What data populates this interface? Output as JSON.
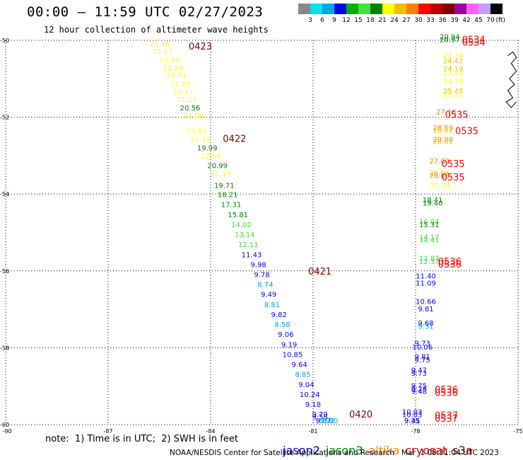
{
  "header": {
    "title": "00:00 – 11:59 UTC 02/27/2023",
    "subtitle": "12 hour collection of altimeter wave heights"
  },
  "colorbar": {
    "unit": "(ft)",
    "ticks": [
      "3",
      "6",
      "9",
      "12",
      "15",
      "18",
      "21",
      "24",
      "27",
      "30",
      "33",
      "36",
      "39",
      "42",
      "45",
      "70"
    ],
    "colors": [
      "#888888",
      "#00e0f0",
      "#00a8e0",
      "#0000ff",
      "#00b000",
      "#40e040",
      "#008000",
      "#ffff00",
      "#f0c000",
      "#ff8000",
      "#ff0000",
      "#c00000",
      "#800000",
      "#a000a0",
      "#ff60ff",
      "#c0a0ff",
      "#000000"
    ]
  },
  "note": "note:  1) Time is in UTC;  2) SWH is in feet",
  "legend": [
    {
      "label": "jason2",
      "color": "#0000cc"
    },
    {
      "label": "jason3",
      "color": "#008800"
    },
    {
      "label": "altika",
      "color": "#ff8800"
    },
    {
      "label": "cryosat",
      "color": "#dd0000"
    },
    {
      "label": "s3a",
      "color": "#880000"
    }
  ],
  "footer": {
    "credit": "NOAA/NESDIS Center for Satellite Applications and Research",
    "timestamp": "Mar  1 08:31:04 UTC 2023"
  },
  "chart_data": {
    "type": "scatter",
    "xlim": [
      -90,
      -75
    ],
    "ylim": [
      -60,
      -50
    ],
    "x_ticks": [
      -90,
      -87,
      -84,
      -81,
      -78,
      -75
    ],
    "x_tick_labels": [
      "-90",
      "-87",
      "-84",
      "-81",
      "-78",
      "-75"
    ],
    "y_ticks": [
      -50,
      -52,
      -54,
      -56,
      -58,
      -60
    ],
    "y_tick_labels": [
      "-50",
      "-52",
      "-54",
      "-56",
      "-58",
      "-60"
    ],
    "grid": true,
    "track_labels": [
      {
        "text": "0423",
        "lon": -84.3,
        "lat": -50.15,
        "color": "#800000"
      },
      {
        "text": "0422",
        "lon": -83.3,
        "lat": -52.55,
        "color": "#800000"
      },
      {
        "text": "0421",
        "lon": -80.8,
        "lat": -56.0,
        "color": "#800000"
      },
      {
        "text": "0420",
        "lon": -79.6,
        "lat": -59.72,
        "color": "#800000"
      },
      {
        "text": "0534",
        "lon": -76.3,
        "lat": -49.97,
        "color": "#ff0000"
      },
      {
        "text": "0534",
        "lon": -76.3,
        "lat": -50.05,
        "color": "#ff0000"
      },
      {
        "text": "0535",
        "lon": -76.8,
        "lat": -51.92,
        "color": "#ff0000"
      },
      {
        "text": "0535",
        "lon": -76.5,
        "lat": -52.35,
        "color": "#ff0000"
      },
      {
        "text": "0535",
        "lon": -76.9,
        "lat": -53.2,
        "color": "#ff0000"
      },
      {
        "text": "0535",
        "lon": -76.9,
        "lat": -53.55,
        "color": "#ff0000"
      },
      {
        "text": "0536",
        "lon": -77.0,
        "lat": -55.75,
        "color": "#ff0000"
      },
      {
        "text": "0536",
        "lon": -77.0,
        "lat": -55.82,
        "color": "#ff0000"
      },
      {
        "text": "0536",
        "lon": -77.1,
        "lat": -59.08,
        "color": "#ff0000"
      },
      {
        "text": "0536",
        "lon": -77.1,
        "lat": -59.16,
        "color": "#ff0000"
      },
      {
        "text": "0537",
        "lon": -77.1,
        "lat": -59.75,
        "color": "#ff0000"
      },
      {
        "text": "0537",
        "lon": -77.1,
        "lat": -59.83,
        "color": "#ff0000"
      }
    ],
    "points": [
      {
        "lon": -85.5,
        "lat": -50.15,
        "swh": "21.36",
        "color": "#ffff00"
      },
      {
        "lon": -85.4,
        "lat": -50.35,
        "swh": "21.27",
        "color": "#ffff00"
      },
      {
        "lon": -85.2,
        "lat": -50.56,
        "swh": "21.43",
        "color": "#ffff00"
      },
      {
        "lon": -85.1,
        "lat": -50.78,
        "swh": "22.28",
        "color": "#ffff00"
      },
      {
        "lon": -85.0,
        "lat": -50.98,
        "swh": "22.71",
        "color": "#ffff00"
      },
      {
        "lon": -84.9,
        "lat": -51.2,
        "swh": "21.23",
        "color": "#ffff00"
      },
      {
        "lon": -84.8,
        "lat": -51.4,
        "swh": "21.17",
        "color": "#ffff00"
      },
      {
        "lon": -84.7,
        "lat": -51.6,
        "swh": "21.27",
        "color": "#ffff00"
      },
      {
        "lon": -84.6,
        "lat": -51.82,
        "swh": "20.56",
        "color": "#008000"
      },
      {
        "lon": -84.5,
        "lat": -52.03,
        "swh": "21.09",
        "color": "#ffff00"
      },
      {
        "lon": -84.4,
        "lat": -52.42,
        "swh": "21.82",
        "color": "#ffff00"
      },
      {
        "lon": -84.3,
        "lat": -52.64,
        "swh": "21.31",
        "color": "#ffff00"
      },
      {
        "lon": -84.1,
        "lat": -52.86,
        "swh": "19.99",
        "color": "#008000"
      },
      {
        "lon": -84.0,
        "lat": -53.08,
        "swh": "22.00",
        "color": "#ffff00"
      },
      {
        "lon": -83.8,
        "lat": -53.32,
        "swh": "20.99",
        "color": "#008000"
      },
      {
        "lon": -83.7,
        "lat": -53.54,
        "swh": "21.14",
        "color": "#ffff00"
      },
      {
        "lon": -83.6,
        "lat": -53.84,
        "swh": "19.71",
        "color": "#008000"
      },
      {
        "lon": -83.5,
        "lat": -54.08,
        "swh": "18.21",
        "color": "#008000"
      },
      {
        "lon": -83.4,
        "lat": -54.34,
        "swh": "17.31",
        "color": "#008000"
      },
      {
        "lon": -83.2,
        "lat": -54.6,
        "swh": "15.81",
        "color": "#008000"
      },
      {
        "lon": -83.1,
        "lat": -54.86,
        "swh": "14.02",
        "color": "#40e040"
      },
      {
        "lon": -83.0,
        "lat": -55.12,
        "swh": "13.14",
        "color": "#40e040"
      },
      {
        "lon": -82.9,
        "lat": -55.38,
        "swh": "12.11",
        "color": "#40e040"
      },
      {
        "lon": -82.8,
        "lat": -55.64,
        "swh": "11.43",
        "color": "#0000ff"
      },
      {
        "lon": -82.6,
        "lat": -55.9,
        "swh": "9.98",
        "color": "#0000ff"
      },
      {
        "lon": -82.5,
        "lat": -56.16,
        "swh": "9.78",
        "color": "#0000ff"
      },
      {
        "lon": -82.4,
        "lat": -56.42,
        "swh": "8.74",
        "color": "#00a8e0"
      },
      {
        "lon": -82.3,
        "lat": -56.68,
        "swh": "9.49",
        "color": "#0000ff"
      },
      {
        "lon": -82.2,
        "lat": -56.94,
        "swh": "8.81",
        "color": "#00a8e0"
      },
      {
        "lon": -82.0,
        "lat": -57.2,
        "swh": "9.82",
        "color": "#0000ff"
      },
      {
        "lon": -81.9,
        "lat": -57.46,
        "swh": "8.58",
        "color": "#00a8e0"
      },
      {
        "lon": -81.8,
        "lat": -57.72,
        "swh": "9.06",
        "color": "#0000ff"
      },
      {
        "lon": -81.7,
        "lat": -57.98,
        "swh": "9.19",
        "color": "#0000ff"
      },
      {
        "lon": -81.6,
        "lat": -58.24,
        "swh": "10.85",
        "color": "#0000ff"
      },
      {
        "lon": -81.4,
        "lat": -58.5,
        "swh": "9.64",
        "color": "#0000ff"
      },
      {
        "lon": -81.3,
        "lat": -58.76,
        "swh": "8.85",
        "color": "#00a8e0"
      },
      {
        "lon": -81.2,
        "lat": -59.02,
        "swh": "9.04",
        "color": "#0000ff"
      },
      {
        "lon": -81.1,
        "lat": -59.28,
        "swh": "10.24",
        "color": "#0000ff"
      },
      {
        "lon": -81.0,
        "lat": -59.54,
        "swh": "9.18",
        "color": "#0000ff"
      },
      {
        "lon": -80.8,
        "lat": -59.8,
        "swh": "9.79",
        "color": "#0000ff"
      },
      {
        "lon": -80.8,
        "lat": -59.86,
        "swh": "9.58",
        "color": "#0000ff"
      },
      {
        "lon": -80.7,
        "lat": -60.06,
        "swh": "9.87",
        "color": "#0000ff"
      },
      {
        "lon": -80.6,
        "lat": -60.32,
        "swh": "8.92",
        "color": "#00a8e0"
      },
      {
        "lon": -80.5,
        "lat": -60.58,
        "swh": "8.80",
        "color": "#00a8e0"
      },
      {
        "lon": -77.0,
        "lat": -49.97,
        "swh": "20.94",
        "color": "#008000"
      },
      {
        "lon": -77.0,
        "lat": -50.05,
        "swh": "20.97",
        "color": "#008000"
      },
      {
        "lon": -76.9,
        "lat": -50.45,
        "swh": "22.38",
        "color": "#ffff00"
      },
      {
        "lon": -76.9,
        "lat": -50.6,
        "swh": "24.42",
        "color": "#f0c000"
      },
      {
        "lon": -76.9,
        "lat": -50.8,
        "swh": "24.19",
        "color": "#f0c000"
      },
      {
        "lon": -76.9,
        "lat": -50.92,
        "swh": "23.84",
        "color": "#ffff00"
      },
      {
        "lon": -76.9,
        "lat": -51.12,
        "swh": "23.78",
        "color": "#ffff00"
      },
      {
        "lon": -76.9,
        "lat": -51.38,
        "swh": "25.45",
        "color": "#f0c000"
      },
      {
        "lon": -76.9,
        "lat": -51.46,
        "swh": "23.81",
        "color": "#ffff00"
      },
      {
        "lon": -77.1,
        "lat": -51.92,
        "swh": "27.16",
        "color": "#ff8000"
      },
      {
        "lon": -77.2,
        "lat": -52.34,
        "swh": "28.59",
        "color": "#ff8000"
      },
      {
        "lon": -77.2,
        "lat": -52.4,
        "swh": "26.82",
        "color": "#f0c000"
      },
      {
        "lon": -77.2,
        "lat": -52.64,
        "swh": "29.80",
        "color": "#ff8000"
      },
      {
        "lon": -77.2,
        "lat": -52.7,
        "swh": "26.81",
        "color": "#f0c000"
      },
      {
        "lon": -77.3,
        "lat": -53.2,
        "swh": "27.02",
        "color": "#ff8000"
      },
      {
        "lon": -77.3,
        "lat": -53.52,
        "swh": "26.06",
        "color": "#f0c000"
      },
      {
        "lon": -77.3,
        "lat": -53.58,
        "swh": "26.80",
        "color": "#ff8000"
      },
      {
        "lon": -77.3,
        "lat": -53.84,
        "swh": "22.39",
        "color": "#ffff00"
      },
      {
        "lon": -77.5,
        "lat": -54.22,
        "swh": "18.41",
        "color": "#008000"
      },
      {
        "lon": -77.5,
        "lat": -54.3,
        "swh": "19.40",
        "color": "#008000"
      },
      {
        "lon": -77.6,
        "lat": -54.78,
        "swh": "16.64",
        "color": "#40e040"
      },
      {
        "lon": -77.6,
        "lat": -54.86,
        "swh": "15.31",
        "color": "#008000"
      },
      {
        "lon": -77.6,
        "lat": -55.18,
        "swh": "14.17",
        "color": "#40e040"
      },
      {
        "lon": -77.6,
        "lat": -55.26,
        "swh": "14.41",
        "color": "#40e040"
      },
      {
        "lon": -77.6,
        "lat": -55.74,
        "swh": "12.87",
        "color": "#40e040"
      },
      {
        "lon": -77.6,
        "lat": -55.82,
        "swh": "12.37",
        "color": "#40e040"
      },
      {
        "lon": -77.7,
        "lat": -56.2,
        "swh": "11.40",
        "color": "#0000ff"
      },
      {
        "lon": -77.7,
        "lat": -56.38,
        "swh": "11.09",
        "color": "#0000ff"
      },
      {
        "lon": -77.7,
        "lat": -56.86,
        "swh": "10.66",
        "color": "#0000ff"
      },
      {
        "lon": -77.7,
        "lat": -57.05,
        "swh": "9.81",
        "color": "#0000ff"
      },
      {
        "lon": -77.7,
        "lat": -57.42,
        "swh": "9.68",
        "color": "#0000ff"
      },
      {
        "lon": -77.7,
        "lat": -57.5,
        "swh": "9.31",
        "color": "#00a8e0"
      },
      {
        "lon": -77.8,
        "lat": -57.95,
        "swh": "9.73",
        "color": "#0000ff"
      },
      {
        "lon": -77.8,
        "lat": -58.05,
        "swh": "10.06",
        "color": "#0000ff"
      },
      {
        "lon": -77.8,
        "lat": -58.3,
        "swh": "9.81",
        "color": "#0000ff"
      },
      {
        "lon": -77.8,
        "lat": -58.38,
        "swh": "9.75",
        "color": "#0000ff"
      },
      {
        "lon": -77.9,
        "lat": -58.65,
        "swh": "9.47",
        "color": "#0000ff"
      },
      {
        "lon": -77.9,
        "lat": -58.73,
        "swh": "9.73",
        "color": "#0000ff"
      },
      {
        "lon": -77.9,
        "lat": -59.05,
        "swh": "9.75",
        "color": "#0000ff"
      },
      {
        "lon": -77.9,
        "lat": -59.13,
        "swh": "9.28",
        "color": "#0000ff"
      },
      {
        "lon": -77.9,
        "lat": -59.2,
        "swh": "9.48",
        "color": "#0000ff"
      },
      {
        "lon": -78.1,
        "lat": -59.73,
        "swh": "10.03",
        "color": "#0000ff"
      },
      {
        "lon": -78.1,
        "lat": -59.81,
        "swh": "10.03",
        "color": "#0000ff"
      },
      {
        "lon": -78.1,
        "lat": -60.08,
        "swh": "9.31",
        "color": "#0000ff"
      },
      {
        "lon": -78.1,
        "lat": -60.42,
        "swh": "9.45",
        "color": "#0000ff"
      }
    ]
  }
}
